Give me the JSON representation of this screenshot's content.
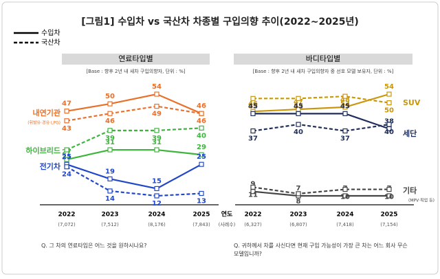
{
  "title": "[그림1] 수입차 vs 국산차 차종별 구입의향 추이(2022~2025년)",
  "legend": [
    {
      "label": "수입차",
      "style": "solid"
    },
    {
      "label": "국산차",
      "style": "dashed"
    }
  ],
  "x_label": "연도",
  "x_sub_label": "(사례수)",
  "chart_data": [
    {
      "type": "line",
      "title": "연료타입별",
      "subtitle": "[Base : 향후 2년 내 새차 구입의향자, 단위 : %]",
      "question": "Q. 그 차의 연료타입은 어느 것을 원하시나요?",
      "categories": [
        "2022",
        "2023",
        "2024",
        "2025"
      ],
      "category_notes": [
        "(7,072)",
        "(7,512)",
        "(8,176)",
        "(7,843)"
      ],
      "series": [
        {
          "name": "내연기관",
          "note": "(휘발유·경유·LPG)",
          "color": "#e8702a",
          "imported": [
            47,
            50,
            54,
            46
          ],
          "domestic": [
            43,
            46,
            49,
            46
          ]
        },
        {
          "name": "하이브리드",
          "color": "#3cb53c",
          "imported": [
            27,
            31,
            31,
            29
          ],
          "domestic": [
            31,
            39,
            39,
            40
          ]
        },
        {
          "name": "전기차",
          "color": "#2047c8",
          "imported": [
            25,
            19,
            15,
            25
          ],
          "domestic": [
            24,
            14,
            12,
            13
          ]
        }
      ]
    },
    {
      "type": "line",
      "title": "바디타입별",
      "subtitle": "[Base : 향후 2년 내 새차 구입의향자 중 선호 모델 보유자, 단위 : %]",
      "question": "Q. 귀하께서 차를 사신다면 현재 구입 가능성이 가장 큰 차는 어느 회사 무슨 모델입니까?",
      "categories": [
        "2022",
        "2023",
        "2024",
        "2025"
      ],
      "category_notes": [
        "(6,327)",
        "(6,807)",
        "(7,418)",
        "(7,154)"
      ],
      "series": [
        {
          "name": "SUV",
          "color": "#c9960a",
          "imported": [
            46,
            47,
            48,
            54
          ],
          "domestic": [
            52,
            52,
            53,
            50
          ]
        },
        {
          "name": "세단",
          "color": "#1f2d5a",
          "imported": [
            45,
            45,
            45,
            38
          ],
          "domestic": [
            37,
            40,
            37,
            40
          ]
        },
        {
          "name": "기타",
          "note": "(MPV·픽업 등)",
          "color": "#444444",
          "imported": [
            9,
            7,
            7,
            7
          ],
          "domestic": [
            11,
            8,
            10,
            10
          ]
        }
      ]
    }
  ]
}
